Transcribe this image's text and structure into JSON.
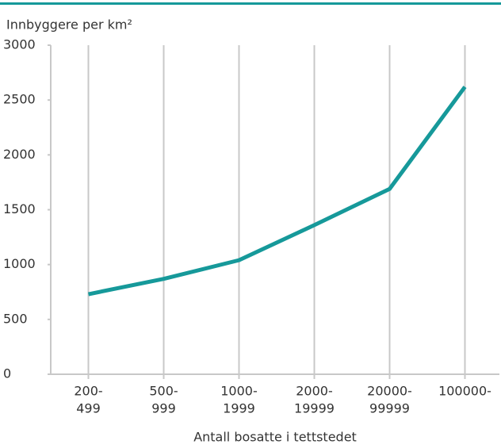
{
  "chart_data": {
    "type": "line",
    "y_label": "Innbyggere per km²",
    "x_label": "Antall bosatte i tettstedet",
    "categories": [
      [
        "200-",
        "499"
      ],
      [
        "500-",
        "999"
      ],
      [
        "1000-",
        "1999"
      ],
      [
        "2000-",
        "19999"
      ],
      [
        "20000-",
        "99999"
      ],
      [
        "100000-"
      ]
    ],
    "series": [
      {
        "color": "#16999a",
        "values": [
          730,
          870,
          1040,
          1360,
          1690,
          2620
        ]
      }
    ],
    "ylim": [
      0,
      3000
    ],
    "yticks": [
      0,
      500,
      1000,
      1500,
      2000,
      2500,
      3000
    ],
    "grid": true
  }
}
